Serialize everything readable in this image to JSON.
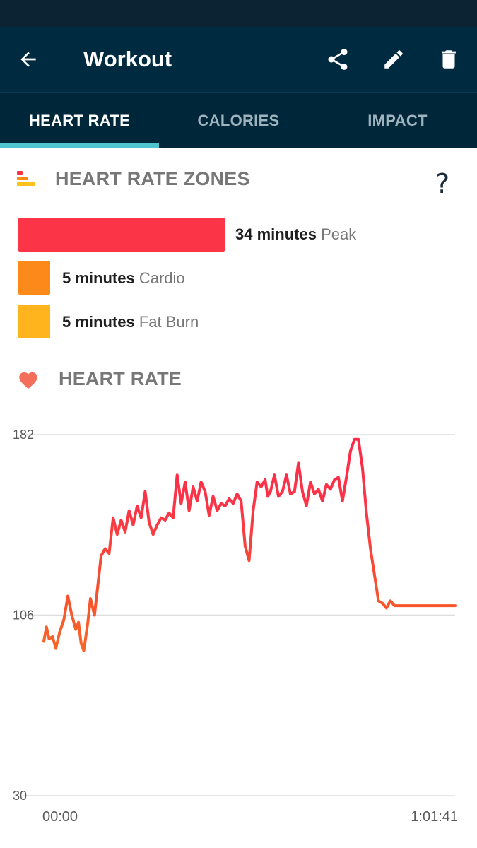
{
  "app_bar": {
    "title": "Workout",
    "icons": {
      "back": "back-arrow-icon",
      "share": "share-icon",
      "edit": "pencil-icon",
      "delete": "trash-icon"
    }
  },
  "tabs": [
    {
      "label": "HEART RATE",
      "active": true
    },
    {
      "label": "CALORIES",
      "active": false
    },
    {
      "label": "IMPACT",
      "active": false
    }
  ],
  "zones_section": {
    "title": "HEART RATE ZONES",
    "help_label": "?",
    "zones": [
      {
        "minutes_text": "34 minutes",
        "zone_name": "Peak",
        "minutes": 34,
        "color": "#fb3447"
      },
      {
        "minutes_text": "5 minutes",
        "zone_name": "Cardio",
        "minutes": 5,
        "color": "#fb8a1b"
      },
      {
        "minutes_text": "5 minutes",
        "zone_name": "Fat Burn",
        "minutes": 5,
        "color": "#ffb31c"
      }
    ]
  },
  "heart_rate_section": {
    "title": "HEART RATE"
  },
  "chart_data": {
    "type": "line",
    "title": "",
    "xlabel": "",
    "ylabel": "",
    "x_tick_labels": [
      "00:00",
      "1:01:41"
    ],
    "y_ticks": [
      30,
      106,
      182
    ],
    "xlim": [
      0,
      61.7
    ],
    "ylim": [
      30,
      182
    ],
    "grid": true,
    "series": [
      {
        "color_gradient": [
          "#f7a21c",
          "#fb3447"
        ],
        "x": [
          0,
          0.4,
          0.8,
          1.3,
          1.8,
          2.4,
          3.0,
          3.6,
          4.2,
          4.8,
          5.2,
          5.6,
          6.0,
          6.6,
          7.0,
          7.6,
          8.0,
          8.6,
          9.2,
          9.8,
          10.4,
          11.0,
          11.6,
          12.2,
          12.8,
          13.4,
          14.0,
          14.6,
          15.2,
          15.8,
          16.4,
          17.0,
          17.6,
          18.2,
          18.8,
          19.4,
          20.0,
          20.6,
          21.2,
          21.8,
          22.4,
          23.0,
          23.6,
          24.2,
          24.8,
          25.4,
          26.0,
          26.6,
          27.2,
          27.8,
          28.4,
          29.0,
          29.6,
          30.2,
          30.8,
          31.4,
          32.0,
          32.6,
          33.2,
          33.6,
          34.0,
          34.6,
          35.2,
          35.8,
          36.4,
          37.0,
          37.6,
          38.2,
          38.8,
          39.4,
          40.0,
          40.6,
          41.2,
          41.8,
          42.4,
          43.0,
          43.6,
          44.2,
          44.8,
          45.4,
          46.0,
          46.6,
          47.2,
          47.8,
          48.4,
          49.0,
          49.6,
          50.2,
          50.8,
          51.4,
          52.0,
          52.6,
          53.2,
          53.8,
          54.4,
          55.0,
          55.6,
          56.2,
          56.8,
          57.4,
          58.0,
          58.6,
          59.2,
          59.8,
          60.4,
          61.0,
          61.7
        ],
        "y": [
          95,
          101,
          96,
          97,
          92,
          99,
          104,
          114,
          106,
          100,
          103,
          94,
          91,
          103,
          113,
          106,
          116,
          131,
          134,
          132,
          147,
          140,
          146,
          141,
          150,
          144,
          152,
          147,
          158,
          145,
          140,
          144,
          147,
          146,
          149,
          147,
          165,
          153,
          162,
          150,
          160,
          154,
          162,
          158,
          148,
          156,
          150,
          153,
          152,
          155,
          153,
          157,
          154,
          135,
          129,
          150,
          162,
          160,
          163,
          156,
          158,
          165,
          156,
          158,
          165,
          157,
          158,
          170,
          158,
          152,
          162,
          157,
          159,
          154,
          161,
          159,
          163,
          164,
          154,
          164,
          175,
          180,
          180,
          168,
          149,
          134,
          123,
          112,
          111,
          109,
          112,
          110,
          110,
          110,
          110,
          110,
          110,
          110,
          110,
          110,
          110,
          110,
          110,
          110,
          110,
          110,
          110
        ]
      }
    ]
  }
}
